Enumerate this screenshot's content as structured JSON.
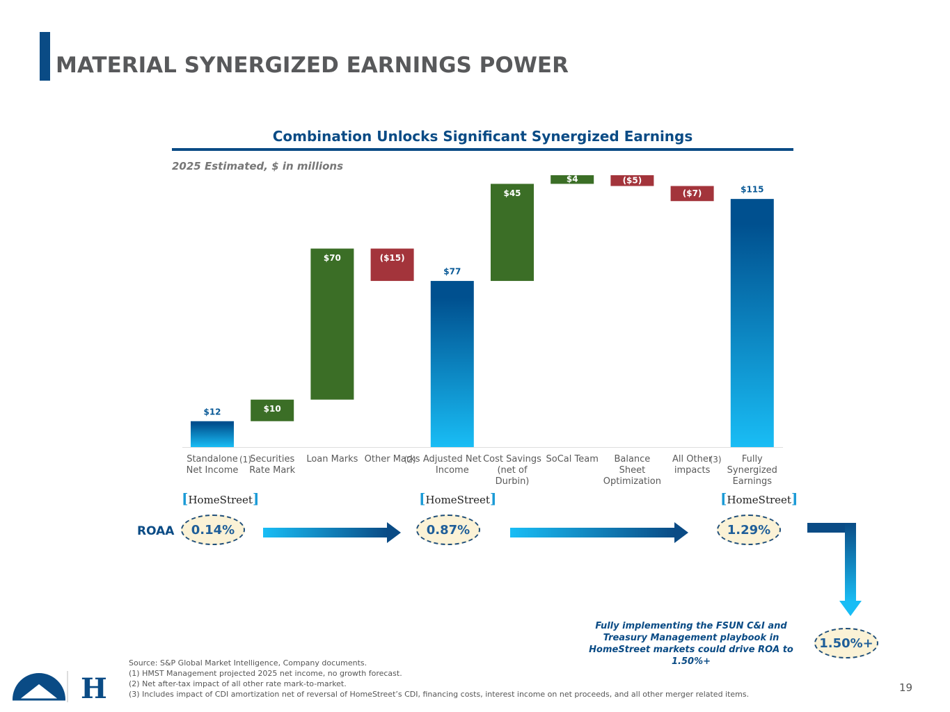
{
  "title": "MATERIAL SYNERGIZED EARNINGS POWER",
  "chart_data": {
    "type": "waterfall",
    "title": "Combination Unlocks Significant Synergized Earnings",
    "subtitle": "2025 Estimated, $ in millions",
    "categories": [
      "Standalone Net Income",
      "Securities Rate Mark",
      "Loan Marks",
      "Other Marks",
      "Adjusted Net Income",
      "Cost Savings (net of Durbin)",
      "SoCal Team",
      "Balance Sheet Optimization",
      "All Other impacts",
      "Fully Synergized Earnings"
    ],
    "footnote_marks": [
      "(1)",
      null,
      null,
      "(2)",
      null,
      null,
      null,
      null,
      "(3)",
      null
    ],
    "values": [
      12,
      10,
      70,
      -15,
      77,
      45,
      4,
      -5,
      -7,
      115
    ],
    "value_labels": [
      "$12",
      "$10",
      "$70",
      "($15)",
      "$77",
      "$45",
      "$4",
      "($5)",
      "($7)",
      "$115"
    ],
    "is_total": [
      true,
      false,
      false,
      false,
      true,
      false,
      false,
      false,
      false,
      true
    ],
    "colors": {
      "increase": "#3b6e26",
      "decrease": "#a3343b",
      "total": "#0a5a97"
    }
  },
  "logo_text": [
    "HomeStreet",
    "HomeStreet",
    "HomeStreet"
  ],
  "roaa": {
    "label": "ROAA",
    "items": [
      "0.14%",
      "0.87%",
      "1.29%"
    ],
    "target": "1.50%+"
  },
  "note": "Fully implementing the FSUN C&I and Treasury Management playbook in HomeStreet markets could drive ROA to 1.50%+",
  "sources": [
    "Source: S&P Global Market Intelligence, Company documents.",
    "(1) HMST Management projected 2025 net income, no growth forecast.",
    "(2) Net after-tax impact of all other rate mark-to-market.",
    "(3) Includes impact of CDI amortization net of reversal of HomeStreet’s CDI, financing costs, interest income on net proceeds, and all other merger related items."
  ],
  "page_number": "19"
}
